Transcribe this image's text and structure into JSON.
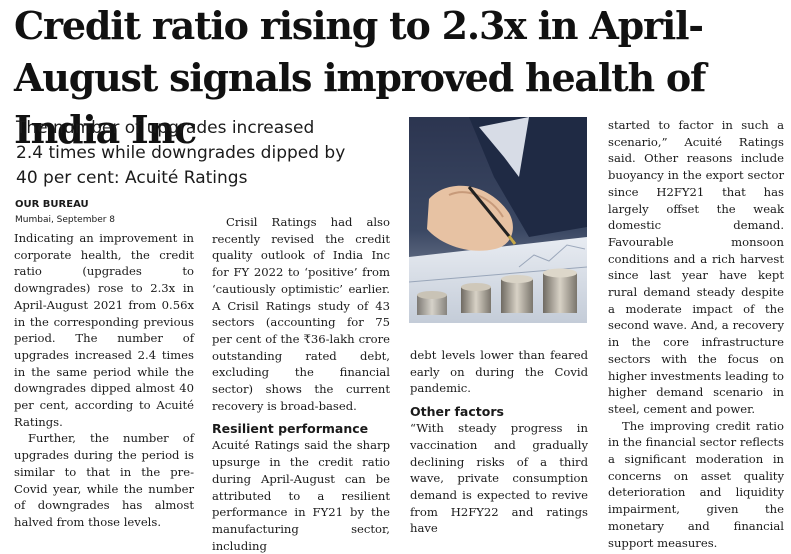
{
  "headline": "Credit ratio rising to 2.3x in April-August signals improved health of India Inc",
  "deck": "The number of upgrades increased 2.4 times while downgrades dipped by 40 per cent: Acuité Ratings",
  "byline": "OUR BUREAU",
  "dateline": "Mumbai, September 8",
  "col1": {
    "p1": "Indicating an improvement in corporate health, the credit ratio (upgrades to downgrades) rose to 2.3x in April-August 2021 from 0.56x in the corresponding previous period. The number of upgrades increased 2.4 times in the same period while the downgrades dipped almost 40 per cent, according to Acuité Ratings.",
    "p2": "Further, the number of upgrades during the period is similar to that in the pre-Covid year, while the number of downgrades has almost halved from those levels."
  },
  "col2": {
    "p1": "Crisil Ratings had also recently revised the credit quality outlook of India Inc for FY 2022 to ‘positive’ from ‘cautiously optimistic’ earlier. A Crisil Ratings study of 43 sectors (accounting for 75 per cent of the ₹36-lakh crore outstanding rated debt, excluding the financial sector) shows the current recovery is broad-based.",
    "subhead": "Resilient performance",
    "p2": "Acuité Ratings said the sharp upsurge in the credit ratio during April-August can be attributed to a resilient performance in FY21 by the manufacturing sector, including"
  },
  "col3": {
    "p1": "debt levels lower than feared early on during the Covid pandemic.",
    "subhead": "Other factors",
    "p2": "“With steady progress in vaccination and gradually declining risks of a third wave, private consumption demand is expected to revive from H2FY22 and ratings have"
  },
  "col4": {
    "p1": "started to factor in such a scenario,” Acuité Ratings said. Other reasons include buoyancy in the export sector since H2FY21 that has largely offset the weak domestic demand. Favourable monsoon conditions and a rich harvest since last year have kept rural demand steady despite a moderate impact of the second wave. And, a recovery in the core infrastructure sectors with the focus on higher investments leading to higher demand scenario in steel, cement and power.",
    "p2": "The improving credit ratio in the financial sector reflects a significant moderation in concerns on asset quality deterioration and liquidity impairment, given the monetary and financial support measures."
  }
}
